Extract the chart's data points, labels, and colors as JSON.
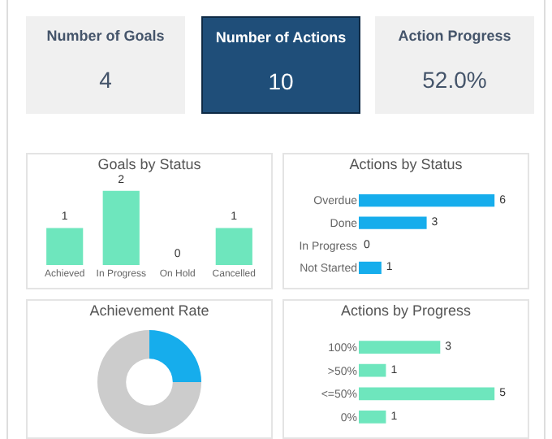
{
  "chart_data": [
    {
      "type": "other",
      "title": "Number of Goals",
      "annotations": [
        "4"
      ],
      "color": "#f0f0f0"
    },
    {
      "type": "other",
      "title": "Number of Actions",
      "annotations": [
        "10"
      ],
      "color": "#1f4e79"
    },
    {
      "type": "other",
      "title": "Action Progress",
      "annotations": [
        "52.0%"
      ],
      "color": "#f0f0f0"
    },
    {
      "type": "bar",
      "title": "Goals by Status",
      "categories": [
        "Achieved",
        "In Progress",
        "On Hold",
        "Cancelled"
      ],
      "values": [
        1,
        2,
        0,
        1
      ],
      "color": "#6ee6bd",
      "data_labels": true
    },
    {
      "type": "bar",
      "orientation": "horizontal",
      "title": "Actions by Status",
      "categories": [
        "Overdue",
        "Done",
        "In Progress",
        "Not Started"
      ],
      "values": [
        6,
        3,
        0,
        1
      ],
      "color": "#16adec",
      "data_labels": true
    },
    {
      "type": "donut",
      "title": "Achievement Rate",
      "categories": [
        null,
        null
      ],
      "values": [
        25,
        75
      ],
      "colors": [
        "#16adec",
        "#cccccc"
      ]
    },
    {
      "type": "bar",
      "orientation": "horizontal",
      "title": "Actions by Progress",
      "categories": [
        "100%",
        ">50%",
        "<=50%",
        "0%"
      ],
      "values": [
        3,
        1,
        5,
        1
      ],
      "color": "#6ee6bd",
      "data_labels": true
    }
  ]
}
